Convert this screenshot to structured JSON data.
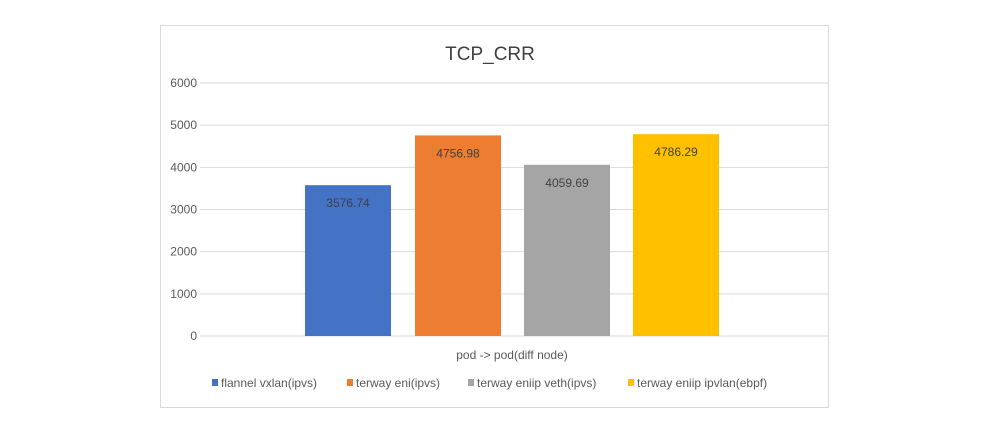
{
  "chart_data": {
    "type": "bar",
    "title": "TCP_CRR",
    "xlabel": "",
    "ylabel": "",
    "categories": [
      "pod -> pod(diff node)"
    ],
    "series": [
      {
        "name": "flannel vxlan(ipvs)",
        "values": [
          3576.74
        ],
        "label": "3576.74",
        "color": "#4472c4"
      },
      {
        "name": "terway eni(ipvs)",
        "values": [
          4756.98
        ],
        "label": "4756.98",
        "color": "#ed7d31"
      },
      {
        "name": "terway eniip veth(ipvs)",
        "values": [
          4059.69
        ],
        "label": "4059.69",
        "color": "#a5a5a5"
      },
      {
        "name": "terway eniip ipvlan(ebpf)",
        "values": [
          4786.29
        ],
        "label": "4786.29",
        "color": "#ffc000"
      }
    ],
    "ylim": [
      0,
      6000
    ],
    "yticks": [
      "0",
      "1000",
      "2000",
      "3000",
      "4000",
      "5000",
      "6000"
    ],
    "grid": true,
    "legend_position": "bottom"
  }
}
